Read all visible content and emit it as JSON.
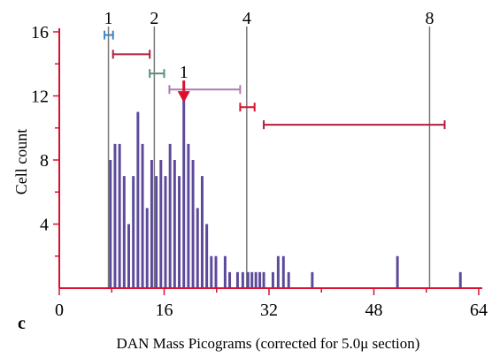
{
  "chart_data": {
    "type": "bar",
    "panel_label": "c",
    "xlabel": "DAN Mass Picograms (corrected for 5.0μ section)",
    "ylabel": "Cell count",
    "xlim": [
      0,
      64
    ],
    "ylim": [
      0,
      16
    ],
    "x_ticks": [
      0,
      16,
      32,
      48,
      64
    ],
    "y_ticks": [
      4,
      8,
      12,
      16
    ],
    "bin_width": 0.4,
    "bars": [
      {
        "x": 7.8,
        "y": 8
      },
      {
        "x": 8.5,
        "y": 9
      },
      {
        "x": 9.2,
        "y": 9
      },
      {
        "x": 9.9,
        "y": 7
      },
      {
        "x": 10.6,
        "y": 4
      },
      {
        "x": 11.3,
        "y": 7
      },
      {
        "x": 12.0,
        "y": 11
      },
      {
        "x": 12.7,
        "y": 9
      },
      {
        "x": 13.4,
        "y": 5
      },
      {
        "x": 14.1,
        "y": 8
      },
      {
        "x": 14.8,
        "y": 7
      },
      {
        "x": 15.5,
        "y": 8
      },
      {
        "x": 16.2,
        "y": 7
      },
      {
        "x": 16.9,
        "y": 9
      },
      {
        "x": 17.6,
        "y": 8
      },
      {
        "x": 18.3,
        "y": 7
      },
      {
        "x": 19.0,
        "y": 12
      },
      {
        "x": 19.7,
        "y": 9
      },
      {
        "x": 20.4,
        "y": 8
      },
      {
        "x": 21.1,
        "y": 5
      },
      {
        "x": 21.8,
        "y": 7
      },
      {
        "x": 22.5,
        "y": 4
      },
      {
        "x": 23.2,
        "y": 2
      },
      {
        "x": 23.9,
        "y": 2
      },
      {
        "x": 25.3,
        "y": 2
      },
      {
        "x": 26.0,
        "y": 1
      },
      {
        "x": 27.2,
        "y": 1
      },
      {
        "x": 28.0,
        "y": 1
      },
      {
        "x": 28.8,
        "y": 1
      },
      {
        "x": 29.4,
        "y": 1
      },
      {
        "x": 30.0,
        "y": 1
      },
      {
        "x": 30.6,
        "y": 1
      },
      {
        "x": 31.2,
        "y": 1
      },
      {
        "x": 32.6,
        "y": 1
      },
      {
        "x": 33.4,
        "y": 2
      },
      {
        "x": 34.2,
        "y": 2
      },
      {
        "x": 35.0,
        "y": 1
      },
      {
        "x": 38.6,
        "y": 1
      },
      {
        "x": 51.6,
        "y": 2
      },
      {
        "x": 61.2,
        "y": 1
      }
    ],
    "reference_lines": [
      {
        "label": "1",
        "x": 7.5
      },
      {
        "label": "2",
        "x": 14.5
      },
      {
        "label": "4",
        "x": 28.6
      },
      {
        "label": "8",
        "x": 56.5
      }
    ],
    "arrow": {
      "label": "1",
      "x": 19.0,
      "y": 12.3,
      "color": "#d9102e"
    },
    "ranges": [
      {
        "from": 6.9,
        "to": 8.2,
        "y": 15.8,
        "color": "#3a86c8"
      },
      {
        "from": 8.2,
        "to": 13.8,
        "y": 14.6,
        "color": "#b01e3c"
      },
      {
        "from": 13.8,
        "to": 16.0,
        "y": 13.4,
        "color": "#5a9078"
      },
      {
        "from": 16.8,
        "to": 27.6,
        "y": 12.4,
        "color": "#b07ab0"
      },
      {
        "from": 27.6,
        "to": 29.8,
        "y": 11.3,
        "color": "#d9102e"
      },
      {
        "from": 31.2,
        "to": 58.8,
        "y": 10.2,
        "color": "#b01e3c"
      }
    ],
    "colors": {
      "bars": "#5d4a9a",
      "axes": "#d9102e",
      "reference_lines": "#777777"
    }
  }
}
